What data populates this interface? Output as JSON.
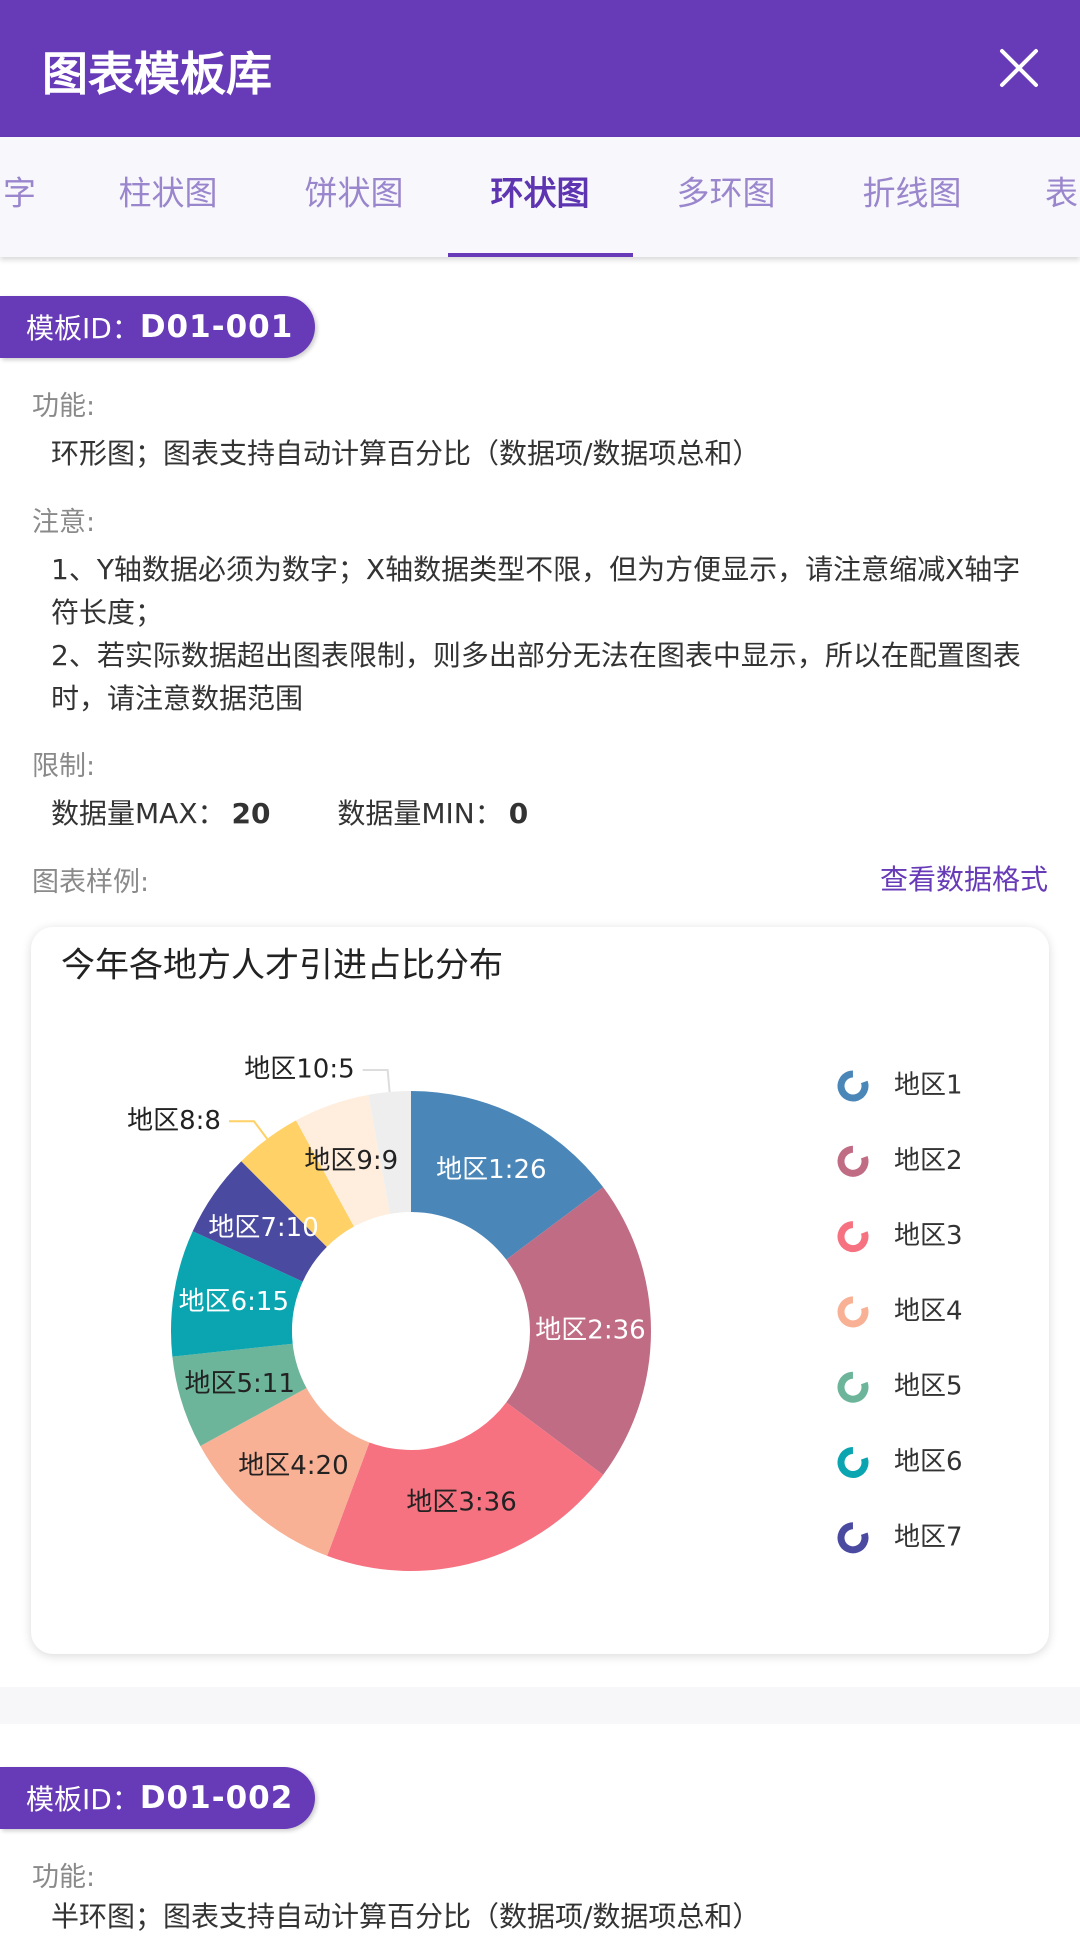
{
  "header": {
    "title": "图表模板库"
  },
  "tabs": {
    "items": [
      "字",
      "柱状图",
      "饼状图",
      "环状图",
      "多环图",
      "折线图",
      "表"
    ],
    "active": 3
  },
  "templates": [
    {
      "id_label": "模板ID：",
      "id": "D01-001",
      "function_label": "功能:",
      "function_text": "环形图；图表支持自动计算百分比（数据项/数据项总和）",
      "notes_label": "注意:",
      "notes": [
        "1、Y轴数据必须为数字；X轴数据类型不限，但为方便显示，请注意缩减X轴字符长度；",
        "2、若实际数据超出图表限制，则多出部分无法在图表中显示，所以在配置图表时，请注意数据范围"
      ],
      "limits_label": "限制:",
      "max_label": "数据量MAX：",
      "max": 20,
      "min_label": "数据量MIN：",
      "min": 0,
      "example_label": "图表样例:",
      "format_link": "查看数据格式"
    },
    {
      "id_label": "模板ID：",
      "id": "D01-002",
      "function_label": "功能:",
      "function_text": "半环图；图表支持自动计算百分比（数据项/数据项总和）"
    }
  ],
  "chart_data": {
    "type": "donut",
    "title": "今年各地方人才引进占比分布",
    "categories": [
      "地区1",
      "地区2",
      "地区3",
      "地区4",
      "地区5",
      "地区6",
      "地区7",
      "地区8",
      "地区9",
      "地区10"
    ],
    "values": [
      26,
      36,
      36,
      20,
      11,
      15,
      10,
      8,
      9,
      5
    ],
    "value_labels": [
      "地区1:26",
      "地区2:36",
      "地区3:36",
      "地区4:20",
      "地区5:11",
      "地区6:15",
      "地区7:10",
      "地区8:8",
      "地区9:9",
      "地区10:5"
    ],
    "colors": [
      "#4a86b8",
      "#c06c84",
      "#f67280",
      "#f8b195",
      "#6cb49a",
      "#0aa5b0",
      "#4a4aa0",
      "#ffd166",
      "#ffeedd",
      "#eeeeee"
    ]
  }
}
